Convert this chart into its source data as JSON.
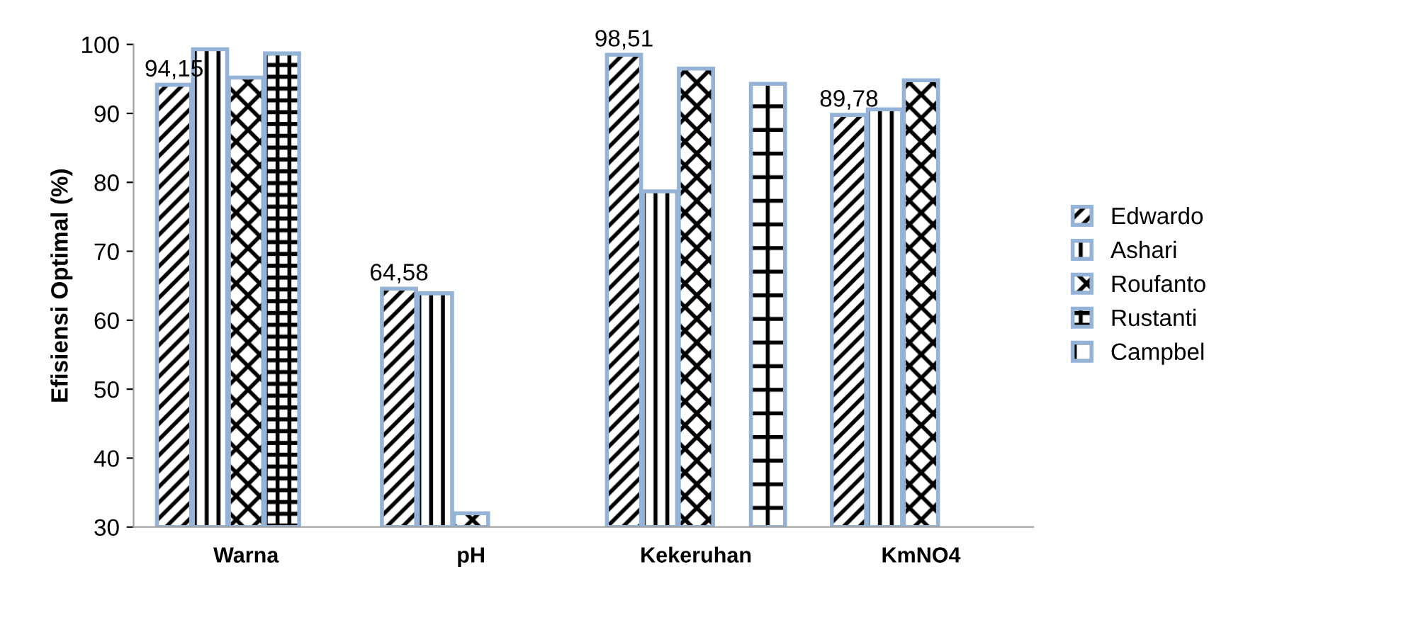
{
  "chart_data": {
    "type": "bar",
    "ylabel": "Efisiensi Optimal (%)",
    "categories": [
      "Warna",
      "pH",
      "Kekeruhan",
      "KmNO4"
    ],
    "series": [
      {
        "name": "Edwardo",
        "color": "#95b3d7",
        "values": [
          94.15,
          64.58,
          98.51,
          89.78
        ],
        "value_labels": [
          "94,15",
          "64,58",
          "98,51",
          "89,78"
        ]
      },
      {
        "name": "Ashari",
        "color": "#95b3d7",
        "values": [
          99.3,
          63.9,
          78.7,
          90.6
        ]
      },
      {
        "name": "Roufanto",
        "color": "#95b3d7",
        "values": [
          95.2,
          32,
          96.5,
          94.8
        ]
      },
      {
        "name": "Rustanti",
        "color": "#95b3d7",
        "values": [
          98.7,
          null,
          null,
          null
        ]
      },
      {
        "name": "Campbel",
        "color": "#95b3d7",
        "values": [
          null,
          null,
          94.3,
          null
        ]
      }
    ],
    "ylim": [
      30,
      100
    ],
    "yticks": [
      30,
      40,
      50,
      60,
      70,
      80,
      90,
      100
    ],
    "grid": false,
    "legend": "right"
  }
}
